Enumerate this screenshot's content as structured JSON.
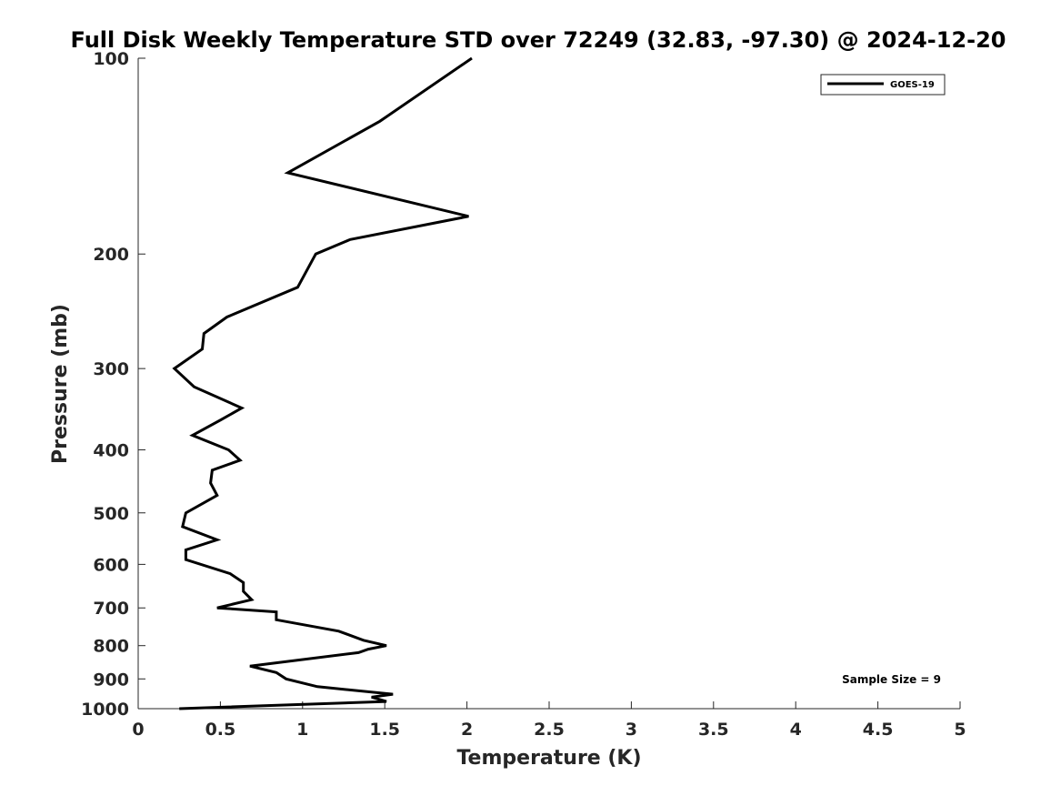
{
  "chart_data": {
    "type": "line",
    "title": "Full Disk Weekly Temperature STD over 72249 (32.83, -97.30) @ 2024-12-20",
    "xlabel": "Temperature (K)",
    "ylabel": "Pressure (mb)",
    "xlim": [
      0,
      5
    ],
    "ylim": [
      100,
      1000
    ],
    "y_scale": "log",
    "y_reversed": true,
    "grid": false,
    "legend_position": "top-right",
    "x_ticks": [
      0,
      0.5,
      1,
      1.5,
      2,
      2.5,
      3,
      3.5,
      4,
      4.5,
      5
    ],
    "x_tick_labels": [
      "0",
      "0.5",
      "1",
      "1.5",
      "2",
      "2.5",
      "3",
      "3.5",
      "4",
      "4.5",
      "5"
    ],
    "y_ticks": [
      100,
      200,
      300,
      400,
      500,
      600,
      700,
      800,
      900,
      1000
    ],
    "y_tick_labels": [
      "100",
      "200",
      "300",
      "400",
      "500",
      "600",
      "700",
      "800",
      "900",
      "1000"
    ],
    "series": [
      {
        "name": "GOES-19",
        "color": "#000000",
        "points": [
          [
            2.03,
            100
          ],
          [
            1.47,
            125
          ],
          [
            0.91,
            150
          ],
          [
            2.01,
            175
          ],
          [
            1.29,
            190
          ],
          [
            1.08,
            200
          ],
          [
            0.97,
            225
          ],
          [
            0.54,
            250
          ],
          [
            0.4,
            265
          ],
          [
            0.39,
            280
          ],
          [
            0.22,
            300
          ],
          [
            0.34,
            320
          ],
          [
            0.63,
            345
          ],
          [
            0.5,
            360
          ],
          [
            0.33,
            380
          ],
          [
            0.55,
            400
          ],
          [
            0.62,
            415
          ],
          [
            0.45,
            430
          ],
          [
            0.44,
            450
          ],
          [
            0.48,
            470
          ],
          [
            0.29,
            500
          ],
          [
            0.27,
            525
          ],
          [
            0.48,
            550
          ],
          [
            0.29,
            570
          ],
          [
            0.29,
            590
          ],
          [
            0.56,
            620
          ],
          [
            0.64,
            640
          ],
          [
            0.64,
            660
          ],
          [
            0.69,
            680
          ],
          [
            0.48,
            700
          ],
          [
            0.84,
            710
          ],
          [
            0.84,
            730
          ],
          [
            1.22,
            760
          ],
          [
            1.37,
            785
          ],
          [
            1.51,
            800
          ],
          [
            1.4,
            810
          ],
          [
            1.34,
            820
          ],
          [
            0.68,
            860
          ],
          [
            0.84,
            880
          ],
          [
            0.9,
            900
          ],
          [
            1.09,
            925
          ],
          [
            1.55,
            950
          ],
          [
            1.42,
            960
          ],
          [
            1.51,
            975
          ],
          [
            0.25,
            1000
          ]
        ]
      }
    ],
    "annotations": [
      "Sample Size = 9"
    ]
  }
}
